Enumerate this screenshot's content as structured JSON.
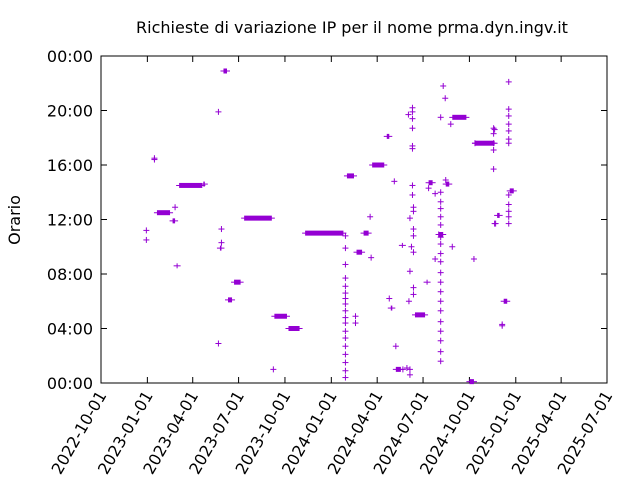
{
  "chart_data": {
    "type": "scatter",
    "title": "Richieste di variazione IP per il nome prma.dyn.ingv.it",
    "xlabel": "",
    "ylabel": "Orario",
    "grid": false,
    "color": "#9400d3",
    "marker": "plus",
    "x_range": [
      "2022-10-01",
      "2025-07-01"
    ],
    "y_range_hours": [
      0,
      24
    ],
    "x_ticks": [
      "2022-10-01",
      "2023-01-01",
      "2023-04-01",
      "2023-07-01",
      "2023-10-01",
      "2024-01-01",
      "2024-04-01",
      "2024-07-01",
      "2024-10-01",
      "2025-01-01",
      "2025-04-01",
      "2025-07-01"
    ],
    "y_ticks": [
      "00:00",
      "04:00",
      "08:00",
      "12:00",
      "16:00",
      "20:00",
      "00:00"
    ],
    "clusters": [
      {
        "x": [
          "2022-12-30",
          "2022-12-30"
        ],
        "y": [
          11.2,
          10.5
        ]
      },
      {
        "x": [
          "2023-01-15",
          "2023-01-15"
        ],
        "y": [
          16.4,
          16.5
        ]
      },
      {
        "x": [
          "2023-01-20",
          "2023-02-15"
        ],
        "y": [
          12.5,
          12.5
        ]
      },
      {
        "x": [
          "2023-02-20",
          "2023-02-25"
        ],
        "y": [
          11.9,
          11.9
        ]
      },
      {
        "x": [
          "2023-02-25"
        ],
        "y": [
          12.9
        ]
      },
      {
        "x": [
          "2023-02-28",
          "2023-03-02"
        ],
        "y": [
          8.6,
          8.6
        ]
      },
      {
        "x": [
          "2023-03-05",
          "2023-04-20"
        ],
        "y": [
          14.5,
          14.5
        ]
      },
      {
        "x": [
          "2023-04-22",
          "2023-04-25"
        ],
        "y": [
          14.6,
          14.6
        ]
      },
      {
        "x": [
          "2023-05-25",
          "2023-05-28"
        ],
        "y": [
          9.9,
          9.9
        ]
      },
      {
        "x": [
          "2023-05-22",
          "2023-05-22",
          "2023-05-28",
          "2023-05-28"
        ],
        "y": [
          19.9,
          2.9,
          11.3,
          10.3
        ]
      },
      {
        "x": [
          "2023-06-01",
          "2023-06-08"
        ],
        "y": [
          22.9,
          22.9
        ]
      },
      {
        "x": [
          "2023-06-10",
          "2023-06-18"
        ],
        "y": [
          6.1,
          6.1
        ]
      },
      {
        "x": [
          "2023-06-22",
          "2023-07-05"
        ],
        "y": [
          7.4,
          7.4
        ]
      },
      {
        "x": [
          "2023-07-12",
          "2023-09-05"
        ],
        "y": [
          12.1,
          12.1
        ]
      },
      {
        "x": [
          "2023-09-08"
        ],
        "y": [
          1.0
        ]
      },
      {
        "x": [
          "2023-09-10",
          "2023-10-05"
        ],
        "y": [
          4.9,
          4.9
        ]
      },
      {
        "x": [
          "2023-10-08",
          "2023-10-30"
        ],
        "y": [
          4.0,
          4.0
        ]
      },
      {
        "x": [
          "2023-11-10",
          "2024-01-25"
        ],
        "y": [
          11.0,
          11.0
        ]
      },
      {
        "x": [
          "2024-01-29",
          "2024-01-29",
          "2024-01-29",
          "2024-01-29",
          "2024-01-29",
          "2024-01-29",
          "2024-01-29",
          "2024-01-29",
          "2024-01-29",
          "2024-01-29",
          "2024-01-29",
          "2024-01-29",
          "2024-01-29",
          "2024-01-29",
          "2024-01-29",
          "2024-01-29",
          "2024-01-29",
          "2024-01-29"
        ],
        "y": [
          10.8,
          9.9,
          8.7,
          7.7,
          7.1,
          6.6,
          6.2,
          5.8,
          5.3,
          4.8,
          4.4,
          3.8,
          3.3,
          2.7,
          2.1,
          1.5,
          0.9,
          0.4
        ]
      },
      {
        "x": [
          "2024-02-01",
          "2024-02-15"
        ],
        "y": [
          15.2,
          15.2
        ]
      },
      {
        "x": [
          "2024-02-18",
          "2024-02-18"
        ],
        "y": [
          4.9,
          4.4
        ]
      },
      {
        "x": [
          "2024-02-20",
          "2024-03-02"
        ],
        "y": [
          9.6,
          9.6
        ]
      },
      {
        "x": [
          "2024-03-05",
          "2024-03-15"
        ],
        "y": [
          11.0,
          11.0
        ]
      },
      {
        "x": [
          "2024-03-18",
          "2024-03-20"
        ],
        "y": [
          12.2,
          9.2
        ]
      },
      {
        "x": [
          "2024-03-22",
          "2024-04-15"
        ],
        "y": [
          16.0,
          16.0
        ]
      },
      {
        "x": [
          "2024-04-20",
          "2024-04-25"
        ],
        "y": [
          18.1,
          18.1
        ]
      },
      {
        "x": [
          "2024-04-25"
        ],
        "y": [
          6.2
        ]
      },
      {
        "x": [
          "2024-04-28",
          "2024-05-01"
        ],
        "y": [
          5.5,
          5.5
        ]
      },
      {
        "x": [
          "2024-05-05",
          "2024-05-08"
        ],
        "y": [
          14.8,
          2.7
        ]
      },
      {
        "x": [
          "2024-05-08",
          "2024-05-18"
        ],
        "y": [
          1.0,
          1.0
        ]
      },
      {
        "x": [
          "2024-05-20",
          "2024-05-22"
        ],
        "y": [
          10.1,
          10.1
        ]
      },
      {
        "x": [
          "2024-05-22",
          "2024-06-05"
        ],
        "y": [
          1.0,
          0.6
        ]
      },
      {
        "x": [
          "2024-05-30",
          "2024-06-05",
          "2024-06-02",
          "2024-06-03",
          "2024-06-05"
        ],
        "y": [
          1.1,
          1.0,
          19.7,
          6.0,
          8.2
        ]
      },
      {
        "x": [
          "2024-06-05",
          "2024-06-08"
        ],
        "y": [
          12.1,
          10.0
        ]
      },
      {
        "x": [
          "2024-06-10",
          "2024-06-10",
          "2024-06-10",
          "2024-06-10",
          "2024-06-10",
          "2024-06-10",
          "2024-06-10",
          "2024-06-10",
          "2024-06-12",
          "2024-06-12",
          "2024-06-12",
          "2024-06-12",
          "2024-06-12",
          "2024-06-12",
          "2024-06-12"
        ],
        "y": [
          19.9,
          20.2,
          19.4,
          18.7,
          17.4,
          17.2,
          14.5,
          13.8,
          12.6,
          12.9,
          11.3,
          10.8,
          9.6,
          7.0,
          6.5
        ]
      },
      {
        "x": [
          "2024-06-15",
          "2024-07-05"
        ],
        "y": [
          5.0,
          5.0
        ]
      },
      {
        "x": [
          "2024-07-08",
          "2024-07-10"
        ],
        "y": [
          7.4,
          7.4
        ]
      },
      {
        "x": [
          "2024-07-12",
          "2024-07-20"
        ],
        "y": [
          14.7,
          14.7
        ]
      },
      {
        "x": [
          "2024-07-12",
          "2024-07-25"
        ],
        "y": [
          14.3,
          13.9
        ]
      },
      {
        "x": [
          "2024-07-25",
          "2024-08-01"
        ],
        "y": [
          9.1,
          10.9
        ]
      },
      {
        "x": [
          "2024-08-01",
          "2024-08-10"
        ],
        "y": [
          10.9,
          10.9
        ]
      },
      {
        "x": [
          "2024-08-05",
          "2024-08-05",
          "2024-08-05",
          "2024-08-05",
          "2024-08-05",
          "2024-08-05",
          "2024-08-05",
          "2024-08-05",
          "2024-08-05",
          "2024-08-05",
          "2024-08-05",
          "2024-08-05",
          "2024-08-05",
          "2024-08-05",
          "2024-08-05",
          "2024-08-05",
          "2024-08-05",
          "2024-08-05",
          "2024-08-05",
          "2024-08-05"
        ],
        "y": [
          19.5,
          14.0,
          13.3,
          12.8,
          12.2,
          11.6,
          10.7,
          10.2,
          9.5,
          8.9,
          8.1,
          7.4,
          6.7,
          6.0,
          5.3,
          4.5,
          3.8,
          3.1,
          2.3,
          1.6
        ]
      },
      {
        "x": [
          "2024-08-10",
          "2024-08-14",
          "2024-08-15"
        ],
        "y": [
          21.8,
          20.9,
          14.9
        ]
      },
      {
        "x": [
          "2024-08-15",
          "2024-08-22"
        ],
        "y": [
          14.6,
          14.6
        ]
      },
      {
        "x": [
          "2024-08-25",
          "2024-08-28"
        ],
        "y": [
          19.0,
          10.0
        ]
      },
      {
        "x": [
          "2024-08-28",
          "2024-09-25"
        ],
        "y": [
          19.5,
          19.5
        ]
      },
      {
        "x": [
          "2024-10-01",
          "2024-10-10"
        ],
        "y": [
          0.1,
          0.1
        ]
      },
      {
        "x": [
          "2024-10-10",
          "2024-10-12"
        ],
        "y": [
          9.1,
          17.6
        ]
      },
      {
        "x": [
          "2024-10-12",
          "2024-11-20"
        ],
        "y": [
          17.6,
          17.6
        ]
      },
      {
        "x": [
          "2024-11-18",
          "2024-11-18",
          "2024-11-18",
          "2024-11-18",
          "2024-11-18",
          "2024-11-20",
          "2024-11-20",
          "2024-11-22"
        ],
        "y": [
          18.7,
          18.3,
          17.6,
          17.1,
          15.7,
          18.6,
          11.7,
          11.7
        ]
      },
      {
        "x": [
          "2024-11-25",
          "2024-11-30"
        ],
        "y": [
          12.3,
          12.3
        ]
      },
      {
        "x": [
          "2024-12-05",
          "2024-12-05"
        ],
        "y": [
          4.3,
          4.2
        ]
      },
      {
        "x": [
          "2024-12-08",
          "2024-12-15"
        ],
        "y": [
          6.0,
          6.0
        ]
      },
      {
        "x": [
          "2024-12-18",
          "2024-12-18",
          "2024-12-18",
          "2024-12-18",
          "2024-12-18",
          "2024-12-18",
          "2024-12-18",
          "2024-12-18",
          "2024-12-18",
          "2024-12-18",
          "2024-12-18",
          "2024-12-18"
        ],
        "y": [
          22.1,
          20.1,
          19.6,
          19.0,
          18.5,
          17.9,
          17.6,
          13.8,
          13.1,
          12.6,
          12.2,
          11.7
        ]
      },
      {
        "x": [
          "2024-12-20",
          "2024-12-28"
        ],
        "y": [
          14.1,
          14.1
        ]
      }
    ]
  }
}
